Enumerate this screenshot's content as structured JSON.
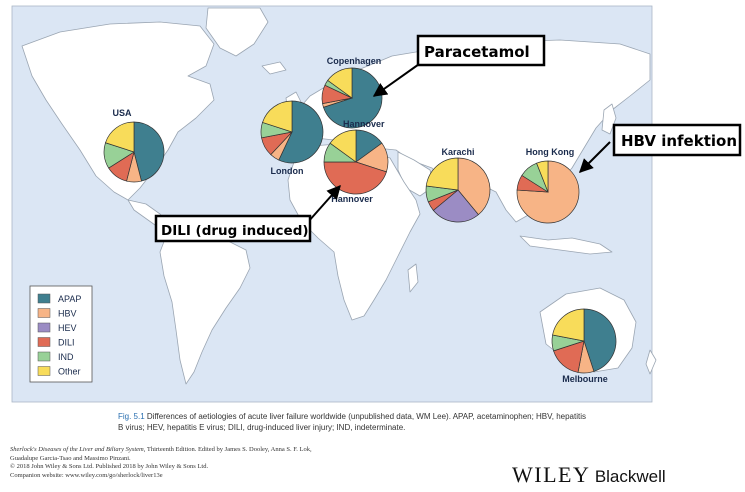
{
  "chart_data": {
    "type": "pie",
    "categories": [
      "APAP",
      "HBV",
      "HEV",
      "DILI",
      "IND",
      "Other"
    ],
    "colors": {
      "APAP": "#3f7f8f",
      "HBV": "#f7b486",
      "HEV": "#9b8cc4",
      "DILI": "#e06b55",
      "IND": "#98d197",
      "Other": "#f8dc5a"
    },
    "sites": [
      {
        "name": "USA",
        "values": {
          "APAP": 46,
          "HBV": 8,
          "HEV": 0,
          "DILI": 12,
          "IND": 14,
          "Other": 20
        }
      },
      {
        "name": "Copenhagen",
        "values": {
          "APAP": 70,
          "HBV": 2,
          "HEV": 0,
          "DILI": 10,
          "IND": 3,
          "Other": 15
        }
      },
      {
        "name": "London",
        "values": {
          "APAP": 57,
          "HBV": 5,
          "HEV": 0,
          "DILI": 10,
          "IND": 8,
          "Other": 20
        }
      },
      {
        "name": "Hannover",
        "values": {
          "APAP": 15,
          "HBV": 15,
          "HEV": 0,
          "DILI": 45,
          "IND": 10,
          "Other": 15
        }
      },
      {
        "name": "Karachi",
        "values": {
          "APAP": 0,
          "HBV": 39,
          "HEV": 25,
          "DILI": 5,
          "IND": 8,
          "Other": 23
        }
      },
      {
        "name": "Hong Kong",
        "values": {
          "APAP": 0,
          "HBV": 76,
          "HEV": 0,
          "DILI": 8,
          "IND": 10,
          "Other": 6
        }
      },
      {
        "name": "Melbourne",
        "values": {
          "APAP": 45,
          "HBV": 8,
          "HEV": 0,
          "DILI": 17,
          "IND": 8,
          "Other": 22
        }
      }
    ],
    "legend_position": "bottom-left"
  },
  "callouts": {
    "paracetamol": "Paracetamol",
    "hbv": "HBV infektion",
    "dili": "DILI (drug induced)"
  },
  "partial_label": "Hannover",
  "caption": {
    "fig": "Fig. 5.1",
    "text": "Differences of aetiologies of acute liver failure worldwide (unpublished data, WM Lee). APAP, acetaminophen; HBV, hepatitis B virus; HEV, hepatitis E virus; DILI, drug-induced liver injury; IND, indeterminate."
  },
  "credits": {
    "book": "Sherlock's Diseases of the Liver and Biliary System,",
    "edition": "Thirteenth Edition. Edited by James S. Dooley, Anna S. F. Lok,",
    "editors": "Guadalupe Garcia-Tsao and Massimo Pinzani.",
    "copyright": "© 2018 John Wiley & Sons Ltd. Published 2018 by John Wiley & Sons Ltd.",
    "website": "Companion website: www.wiley.com/go/sherlock/liver13e"
  },
  "publisher": {
    "wiley": "WILEY",
    "blackwell": "Blackwell"
  }
}
